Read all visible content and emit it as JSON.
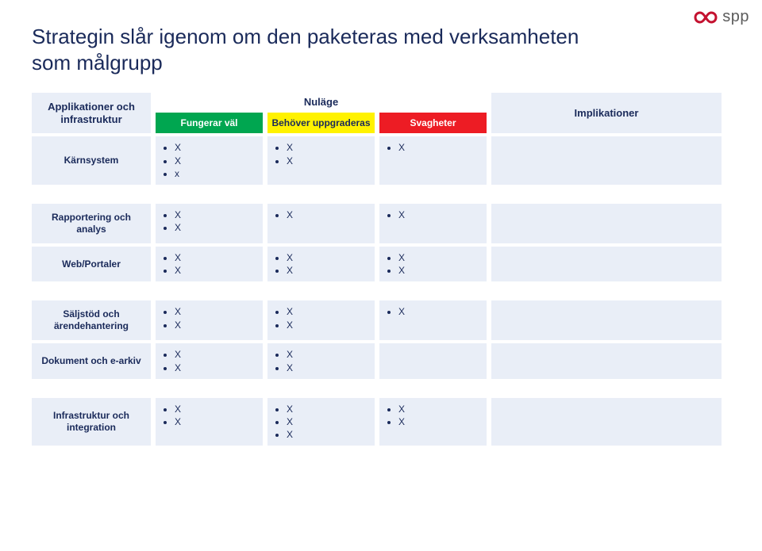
{
  "logo": {
    "brand_text": "spp",
    "mark_color": "#c41230",
    "text_color": "#5c5c5c"
  },
  "title": "Strategin slår igenom om den paketeras med verksamheten som målgrupp",
  "headers": {
    "left": "Applikationer och infrastruktur",
    "nulage": "Nuläge",
    "col_green": "Fungerar väl",
    "col_yellow": "Behöver uppgraderas",
    "col_red": "Svagheter",
    "impl": "Implikationer"
  },
  "colors": {
    "header_bg": "#e9eef7",
    "header_fg": "#1a2a5a",
    "green": "#00a650",
    "yellow": "#fff200",
    "red": "#ed1c24",
    "cell_bg": "#e9eef7"
  },
  "rows": [
    {
      "label": "Kärnsystem",
      "green": [
        "X",
        "X",
        "x"
      ],
      "yellow": [
        "X",
        "X"
      ],
      "red": [
        "X"
      ],
      "impl": []
    },
    {
      "label": "Rapportering och analys",
      "green": [
        "X",
        "X"
      ],
      "yellow": [
        "X"
      ],
      "red": [
        "X"
      ],
      "impl": []
    },
    {
      "label": "Web/Portaler",
      "green": [
        "X",
        "X"
      ],
      "yellow": [
        "X",
        "X"
      ],
      "red": [
        "X",
        "X"
      ],
      "impl": []
    },
    {
      "label": "Säljstöd och ärendehantering",
      "green": [
        "X",
        "X"
      ],
      "yellow": [
        "X",
        "X"
      ],
      "red": [
        "X"
      ],
      "impl": []
    },
    {
      "label": "Dokument och e-arkiv",
      "green": [
        "X",
        "X"
      ],
      "yellow": [
        "X",
        "X"
      ],
      "red": [],
      "impl": []
    },
    {
      "label": "Infrastruktur och integration",
      "green": [
        "X",
        "X"
      ],
      "yellow": [
        "X",
        "X",
        "X"
      ],
      "red": [
        "X",
        "X"
      ],
      "impl": []
    }
  ],
  "group_breaks_after": [
    0,
    2,
    4
  ]
}
